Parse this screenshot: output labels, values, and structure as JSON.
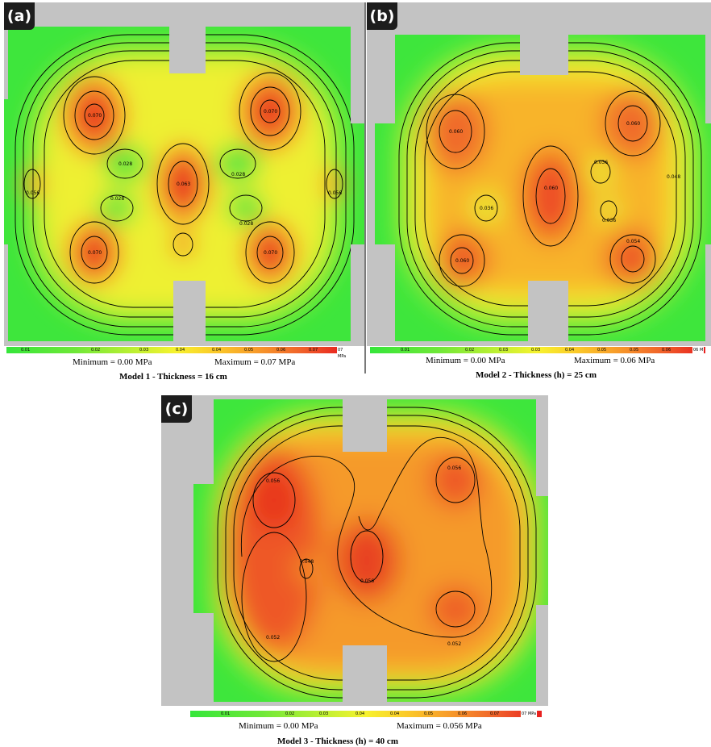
{
  "panels": [
    {
      "tag": "(a)",
      "minimum": "Minimum = 0.00 MPa",
      "maximum": "Maximum = 0.07 MPa",
      "title": "Model 1 - Thickness = 16 cm",
      "legend_ticks": [
        "0.01",
        "0.02",
        "0.03",
        "0.04",
        "0.04",
        "0.05",
        "0.06",
        "0.07"
      ],
      "legend_unit": "07 MPa",
      "hotspots": [
        {
          "label": "0.070",
          "value": 0.07
        },
        {
          "label": "0.070",
          "value": 0.07
        },
        {
          "label": "0.063",
          "value": 0.063
        },
        {
          "label": "0.070",
          "value": 0.07
        },
        {
          "label": "0.070",
          "value": 0.07
        },
        {
          "label": "0.056",
          "value": 0.056
        },
        {
          "label": "0.056",
          "value": 0.056
        },
        {
          "label": "0.028",
          "value": 0.028
        },
        {
          "label": "0.028",
          "value": 0.028
        },
        {
          "label": "0.028",
          "value": 0.028
        },
        {
          "label": "0.028",
          "value": 0.028
        }
      ]
    },
    {
      "tag": "(b)",
      "minimum": "Minimum = 0.00 MPa",
      "maximum": "Maximum = 0.06 MPa",
      "title": "Model 2 - Thickness (h) = 25 cm",
      "legend_ticks": [
        "0.01",
        "0.02",
        "0.03",
        "0.03",
        "0.04",
        "0.05",
        "0.05",
        "0.06"
      ],
      "legend_unit": "06 M",
      "hotspots": [
        {
          "label": "0.060",
          "value": 0.06
        },
        {
          "label": "0.060",
          "value": 0.06
        },
        {
          "label": "0.060",
          "value": 0.06
        },
        {
          "label": "0.060",
          "value": 0.06
        },
        {
          "label": "0.054",
          "value": 0.054
        },
        {
          "label": "0.036",
          "value": 0.036
        },
        {
          "label": "0.036",
          "value": 0.036
        },
        {
          "label": "0.048",
          "value": 0.048
        },
        {
          "label": "0.036",
          "value": 0.036
        }
      ]
    },
    {
      "tag": "(c)",
      "minimum": "Minimum = 0.00 MPa",
      "maximum": "Maximum = 0.056 MPa",
      "title": "Model 3 - Thickness (h) = 40 cm",
      "legend_ticks": [
        "0.01",
        "0.02",
        "0.03",
        "0.04",
        "0.04",
        "0.05",
        "0.06",
        "0.07"
      ],
      "legend_unit": "07 MPa",
      "hotspots": [
        {
          "label": "0.056",
          "value": 0.056
        },
        {
          "label": "0.056",
          "value": 0.056
        },
        {
          "label": "0.056",
          "value": 0.056
        },
        {
          "label": "0.052",
          "value": 0.052
        },
        {
          "label": "0.052",
          "value": 0.052
        },
        {
          "label": "0.048",
          "value": 0.048
        }
      ]
    }
  ]
}
